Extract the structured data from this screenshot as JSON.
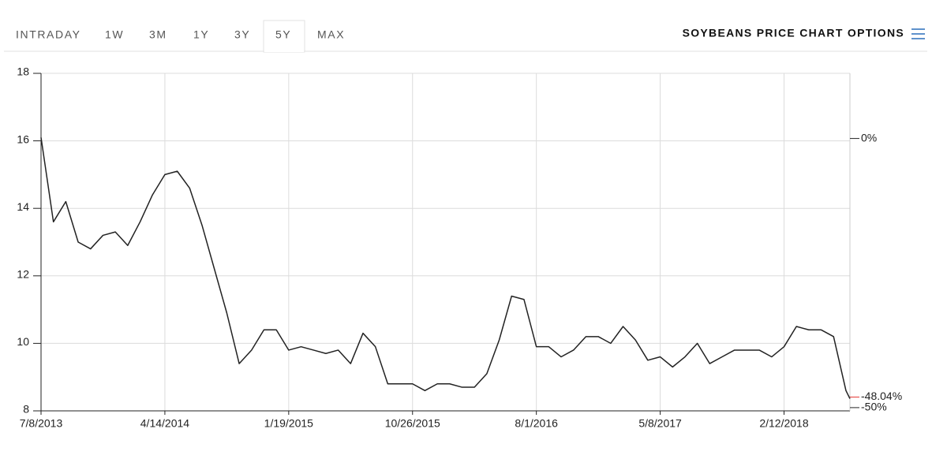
{
  "ui": {
    "tabs": [
      "INTRADAY",
      "1W",
      "3M",
      "1Y",
      "3Y",
      "5Y",
      "MAX"
    ],
    "selected": 5,
    "options_label": "SOYBEANS PRICE CHART OPTIONS"
  },
  "chart_data": {
    "type": "line",
    "x": [
      "7/8/2013",
      "8/5/2013",
      "9/2/2013",
      "9/30/2013",
      "10/28/2013",
      "11/25/2013",
      "12/23/2013",
      "1/20/2014",
      "2/17/2014",
      "3/17/2014",
      "4/14/2014",
      "5/12/2014",
      "6/9/2014",
      "7/7/2014",
      "8/4/2014",
      "9/1/2014",
      "9/29/2014",
      "10/27/2014",
      "11/24/2014",
      "12/22/2014",
      "1/19/2015",
      "2/16/2015",
      "3/16/2015",
      "4/13/2015",
      "5/11/2015",
      "6/8/2015",
      "7/6/2015",
      "8/3/2015",
      "8/31/2015",
      "9/28/2015",
      "10/26/2015",
      "11/23/2015",
      "12/21/2015",
      "1/18/2016",
      "2/15/2016",
      "3/14/2016",
      "4/11/2016",
      "5/9/2016",
      "6/6/2016",
      "7/4/2016",
      "8/1/2016",
      "8/29/2016",
      "9/26/2016",
      "10/24/2016",
      "11/21/2016",
      "12/19/2016",
      "1/16/2017",
      "2/13/2017",
      "3/13/2017",
      "4/10/2017",
      "5/8/2017",
      "6/5/2017",
      "7/3/2017",
      "7/31/2017",
      "8/28/2017",
      "9/25/2017",
      "10/23/2017",
      "11/20/2017",
      "12/18/2017",
      "1/15/2018",
      "2/12/2018",
      "3/12/2018",
      "4/9/2018",
      "5/7/2018",
      "6/4/2018",
      "7/2/2018",
      "7/11/2018"
    ],
    "series": [
      {
        "name": "Soybeans",
        "color": "#222222",
        "values": [
          16.1,
          13.6,
          14.2,
          13.0,
          12.8,
          13.2,
          13.3,
          12.9,
          13.6,
          14.4,
          15.0,
          15.1,
          14.6,
          13.5,
          12.2,
          10.9,
          9.4,
          9.8,
          10.4,
          10.4,
          9.8,
          9.9,
          9.8,
          9.7,
          9.8,
          9.4,
          10.3,
          9.9,
          8.8,
          8.8,
          8.8,
          8.6,
          8.8,
          8.8,
          8.7,
          8.7,
          9.1,
          10.1,
          11.4,
          11.3,
          9.9,
          9.9,
          9.6,
          9.8,
          10.2,
          10.2,
          10.0,
          10.5,
          10.1,
          9.5,
          9.6,
          9.3,
          9.6,
          10.0,
          9.4,
          9.6,
          9.8,
          9.8,
          9.8,
          9.6,
          9.9,
          10.5,
          10.4,
          10.4,
          10.2,
          8.6,
          8.36
        ]
      }
    ],
    "xlim": [
      "7/8/2013",
      "7/11/2018"
    ],
    "xticks": [
      "7/8/2013",
      "4/14/2014",
      "1/19/2015",
      "10/26/2015",
      "8/1/2016",
      "5/8/2017",
      "2/12/2018"
    ],
    "ylim": [
      8,
      18
    ],
    "yticks": [
      8,
      10,
      12,
      14,
      16,
      18
    ],
    "y2lim": [
      -50.6,
      12.1
    ],
    "y2ticks": [
      {
        "value": 0,
        "label": "0%"
      },
      {
        "value": -50,
        "label": "-50%"
      }
    ],
    "end_label": {
      "value": -48.04,
      "label": "-48.04%",
      "color": "#e53935"
    },
    "grid": true
  }
}
